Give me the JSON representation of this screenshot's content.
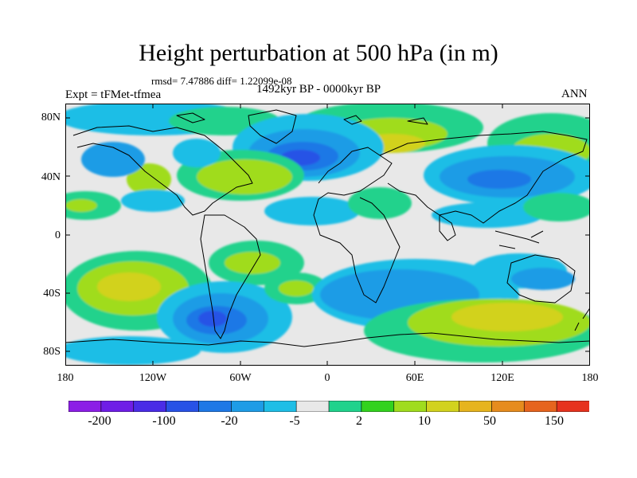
{
  "title": "Height perturbation at 500 hPa (in m)",
  "stats": "rmsd= 7.47886 diff= 1.22099e-08",
  "expt": "Expt = tFMet-tfmea",
  "period": "1492kyr BP - 0000kyr BP",
  "season": "ANN",
  "lat_labels": [
    "80N",
    "40N",
    "0",
    "40S",
    "80S"
  ],
  "lon_labels": [
    "180",
    "120W",
    "60W",
    "0",
    "60E",
    "120E",
    "180"
  ],
  "colorbar": {
    "colors": [
      "#8c1ee6",
      "#6f1ee6",
      "#4a2ce6",
      "#2852e6",
      "#1e78e6",
      "#1e9ce6",
      "#1ebee6",
      "#e8e8e8",
      "#20d28c",
      "#32d21e",
      "#a0dc1e",
      "#d2d21e",
      "#e6b41e",
      "#e68c1e",
      "#e6641e",
      "#e6321e"
    ],
    "labels": [
      "-200",
      "-100",
      "-20",
      "-5",
      "2",
      "10",
      "50",
      "150"
    ]
  },
  "icons": [
    "world-coastline-map"
  ]
}
